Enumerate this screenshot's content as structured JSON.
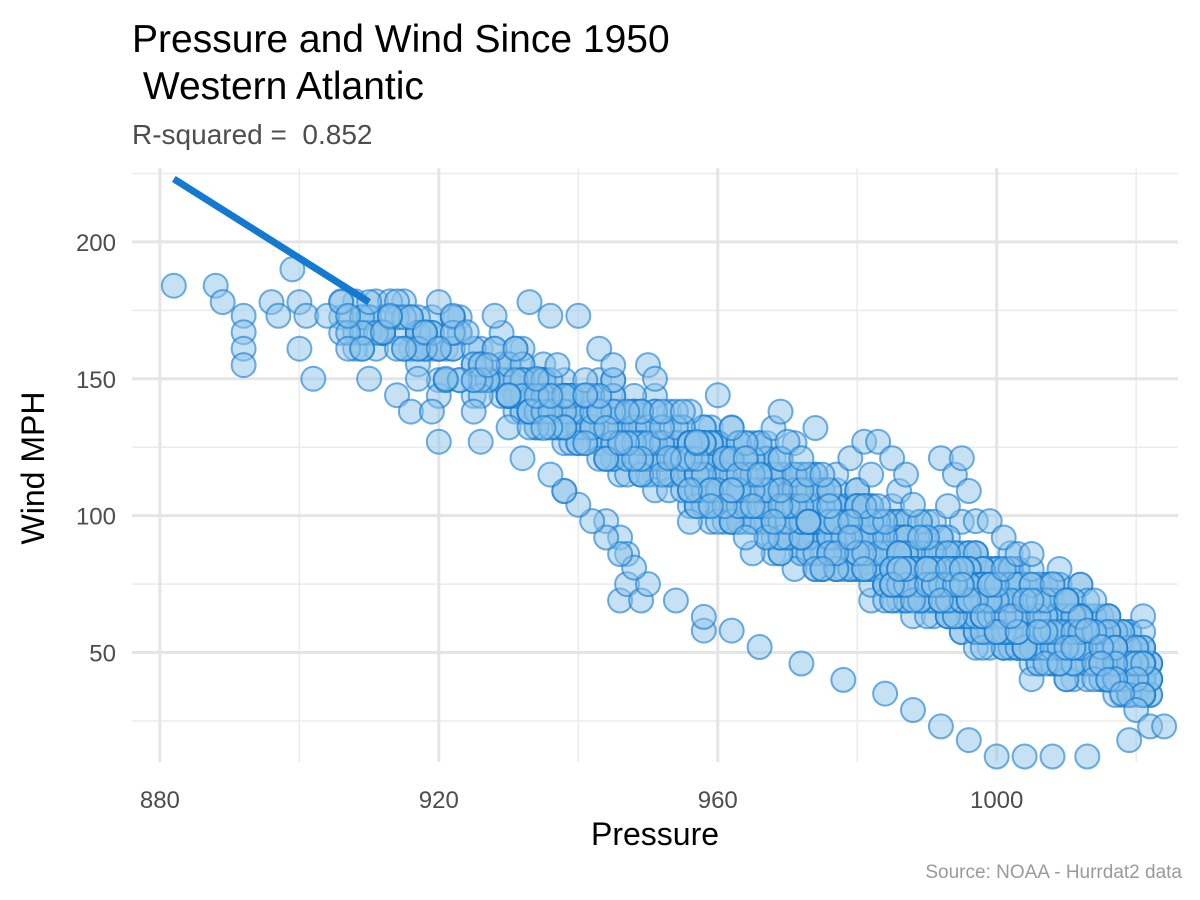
{
  "chart_data": {
    "type": "scatter",
    "title_line_1": "Pressure and Wind Since 1950",
    "title_line_2": " Western Atlantic",
    "subtitle": "R-squared =  0.852",
    "caption": "Source: NOAA - Hurrdat2 data",
    "xlabel": "Pressure",
    "ylabel": "Wind MPH",
    "xlim": [
      876,
      1026
    ],
    "ylim": [
      10,
      227
    ],
    "x_ticks": [
      880,
      920,
      960,
      1000
    ],
    "y_ticks": [
      50,
      100,
      150,
      200
    ],
    "grid": true,
    "legend": "none",
    "point_color": "#1479d0",
    "point_fill": "#8ec4ea",
    "line_color": "#1479d0",
    "trend_line": {
      "x": [
        882,
        910
      ],
      "y": [
        223,
        178
      ]
    },
    "points_outlier": [
      [
        882,
        184
      ],
      [
        888,
        184
      ],
      [
        889,
        178
      ],
      [
        892,
        173
      ],
      [
        892,
        167
      ],
      [
        892,
        161
      ],
      [
        892,
        155
      ],
      [
        896,
        178
      ],
      [
        897,
        173
      ],
      [
        899,
        190
      ],
      [
        900,
        178
      ],
      [
        901,
        173
      ],
      [
        900,
        161
      ],
      [
        902,
        150
      ],
      [
        904,
        173
      ],
      [
        906,
        178
      ],
      [
        907,
        173
      ],
      [
        907,
        161
      ],
      [
        909,
        161
      ],
      [
        910,
        150
      ],
      [
        910,
        178
      ],
      [
        912,
        167
      ],
      [
        914,
        144
      ],
      [
        913,
        173
      ],
      [
        915,
        161
      ],
      [
        916,
        138
      ],
      [
        917,
        150
      ],
      [
        918,
        167
      ],
      [
        920,
        178
      ],
      [
        920,
        161
      ],
      [
        919,
        138
      ],
      [
        920,
        127
      ],
      [
        921,
        150
      ],
      [
        922,
        173
      ],
      [
        924,
        167
      ],
      [
        925,
        138
      ],
      [
        926,
        127
      ],
      [
        927,
        155
      ],
      [
        928,
        173
      ],
      [
        930,
        144
      ],
      [
        931,
        161
      ],
      [
        932,
        121
      ],
      [
        933,
        178
      ],
      [
        934,
        150
      ],
      [
        935,
        132
      ],
      [
        936,
        173
      ],
      [
        937,
        155
      ],
      [
        938,
        109
      ],
      [
        940,
        173
      ],
      [
        941,
        144
      ],
      [
        943,
        161
      ],
      [
        944,
        132
      ],
      [
        944,
        98
      ],
      [
        945,
        155
      ],
      [
        946,
        92
      ],
      [
        947,
        86
      ],
      [
        946,
        69
      ],
      [
        947,
        75
      ],
      [
        950,
        155
      ],
      [
        951,
        150
      ],
      [
        952,
        138
      ],
      [
        953,
        121
      ],
      [
        949,
        69
      ],
      [
        955,
        138
      ],
      [
        957,
        127
      ],
      [
        960,
        144
      ],
      [
        958,
        58
      ],
      [
        962,
        132
      ],
      [
        964,
        121
      ],
      [
        966,
        115
      ],
      [
        968,
        132
      ],
      [
        969,
        138
      ],
      [
        970,
        127
      ],
      [
        972,
        121
      ],
      [
        974,
        132
      ],
      [
        975,
        115
      ],
      [
        979,
        121
      ],
      [
        981,
        127
      ],
      [
        983,
        127
      ],
      [
        985,
        121
      ],
      [
        986,
        109
      ],
      [
        987,
        115
      ],
      [
        988,
        104
      ],
      [
        992,
        121
      ],
      [
        994,
        115
      ],
      [
        995,
        121
      ],
      [
        996,
        109
      ],
      [
        997,
        98
      ],
      [
        999,
        98
      ],
      [
        1001,
        92
      ],
      [
        1003,
        86
      ],
      [
        1005,
        86
      ],
      [
        1005,
        69
      ],
      [
        1008,
        75
      ],
      [
        1010,
        69
      ],
      [
        1012,
        63
      ],
      [
        1013,
        58
      ],
      [
        1015,
        52
      ],
      [
        1015,
        46
      ],
      [
        1016,
        40
      ],
      [
        1018,
        35
      ],
      [
        1020,
        29
      ],
      [
        1022,
        23
      ],
      [
        1024,
        23
      ],
      [
        1019,
        18
      ],
      [
        1013,
        12
      ],
      [
        1008,
        12
      ],
      [
        1004,
        12
      ],
      [
        1000,
        12
      ],
      [
        996,
        18
      ],
      [
        992,
        23
      ],
      [
        988,
        29
      ],
      [
        984,
        35
      ],
      [
        978,
        40
      ],
      [
        972,
        46
      ],
      [
        966,
        52
      ],
      [
        962,
        58
      ],
      [
        958,
        63
      ],
      [
        954,
        69
      ],
      [
        950,
        75
      ],
      [
        948,
        81
      ],
      [
        946,
        86
      ],
      [
        944,
        92
      ],
      [
        942,
        98
      ],
      [
        940,
        104
      ],
      [
        938,
        109
      ],
      [
        936,
        115
      ]
    ],
    "points_dense": [
      {
        "pressure_min": 906,
        "pressure_max": 960,
        "wind_min": 120,
        "wind_max": 180,
        "n": 260,
        "slope": -1.15,
        "spread": 14
      },
      {
        "pressure_min": 930,
        "pressure_max": 990,
        "wind_min": 70,
        "wind_max": 150,
        "n": 550,
        "slope": -1.15,
        "spread": 16
      },
      {
        "pressure_min": 955,
        "pressure_max": 1010,
        "wind_min": 35,
        "wind_max": 130,
        "n": 900,
        "slope": -1.15,
        "spread": 18
      },
      {
        "pressure_min": 985,
        "pressure_max": 1022,
        "wind_min": 12,
        "wind_max": 80,
        "n": 850,
        "slope": -1.15,
        "spread": 15
      }
    ]
  }
}
